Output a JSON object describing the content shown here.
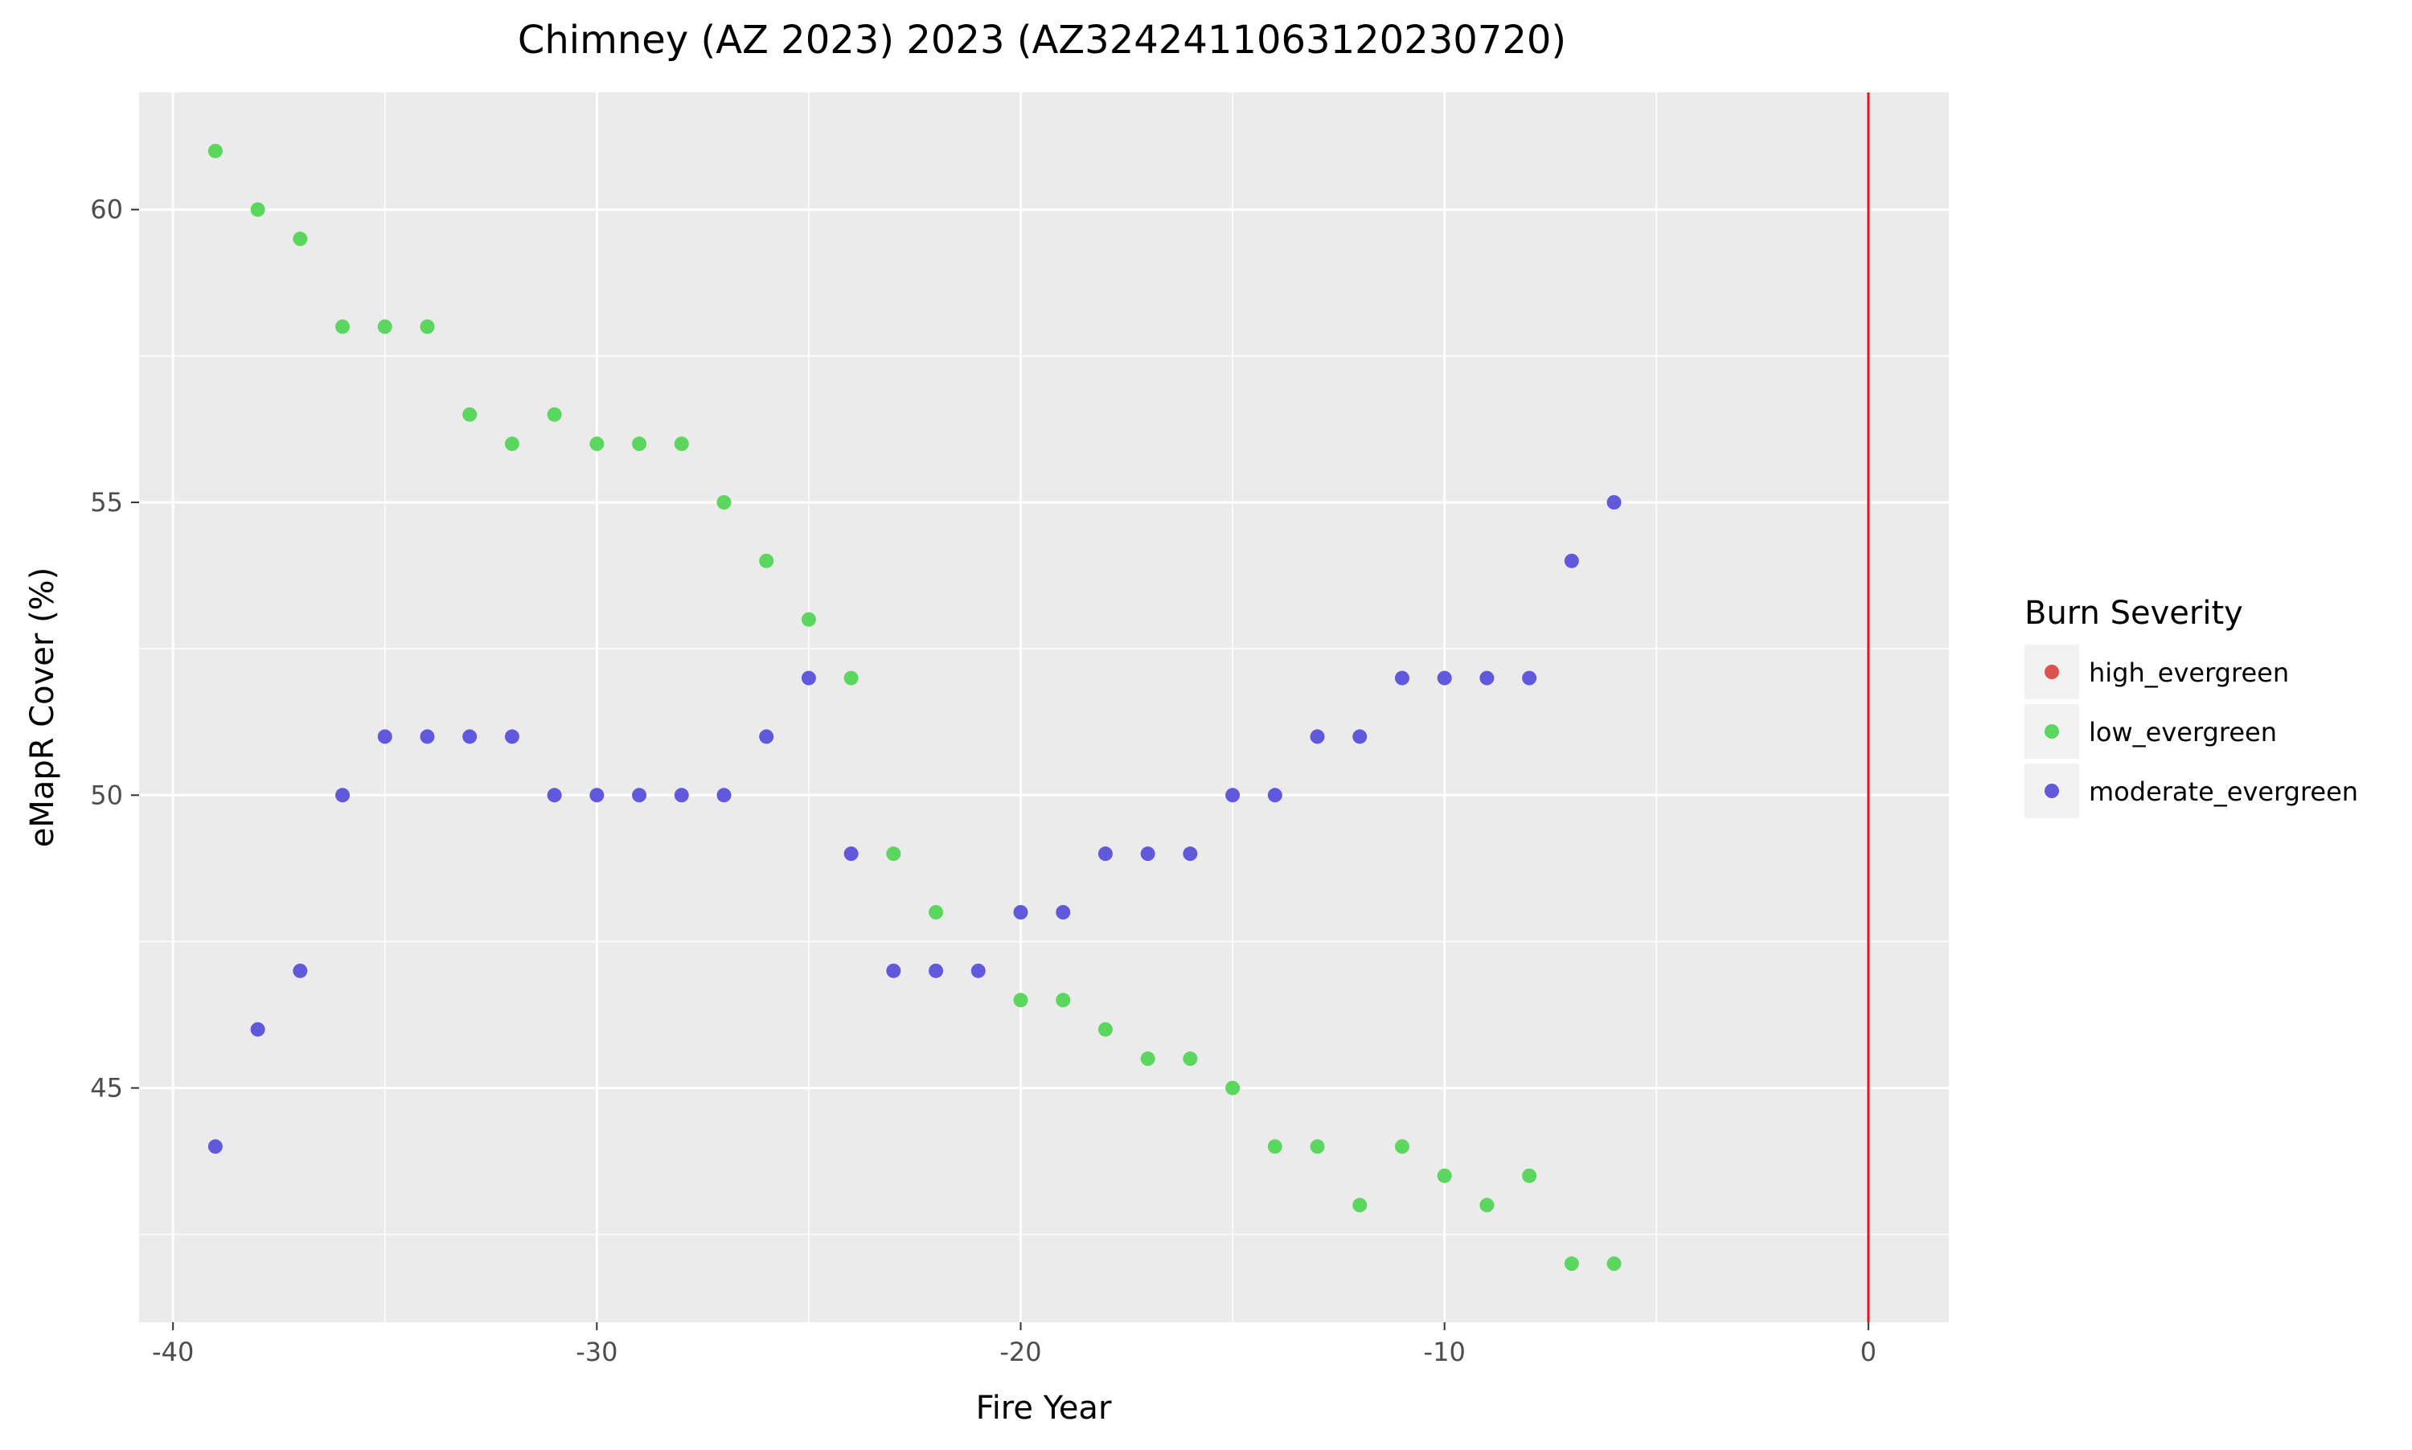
{
  "chart_data": {
    "type": "scatter",
    "title": "Chimney (AZ 2023) 2023 (AZ3242411063120230720)",
    "xlabel": "Fire Year",
    "ylabel": "eMapR Cover (%)",
    "xlim": [
      -40.8,
      1.9
    ],
    "ylim": [
      41.0,
      62.0
    ],
    "x_ticks": [
      -40,
      -30,
      -20,
      -10,
      0
    ],
    "x_tick_labels": [
      "-40",
      "-30",
      "-20",
      "-10",
      "0"
    ],
    "y_ticks": [
      45,
      50,
      55,
      60
    ],
    "y_tick_labels": [
      "45",
      "50",
      "55",
      "60"
    ],
    "grid": true,
    "vline": {
      "x": 0,
      "color": "#e41a1c"
    },
    "legend": {
      "title": "Burn Severity",
      "position": "right",
      "entries": [
        {
          "label": "high_evergreen",
          "color": "#d9544e"
        },
        {
          "label": "low_evergreen",
          "color": "#5bd65e"
        },
        {
          "label": "moderate_evergreen",
          "color": "#6159dc"
        }
      ]
    },
    "series": [
      {
        "name": "high_evergreen",
        "color": "#d9544e",
        "points": []
      },
      {
        "name": "low_evergreen",
        "color": "#5bd65e",
        "points": [
          [
            -39,
            61
          ],
          [
            -38,
            60
          ],
          [
            -37,
            59.5
          ],
          [
            -36,
            58
          ],
          [
            -35,
            58
          ],
          [
            -34,
            58
          ],
          [
            -33,
            56.5
          ],
          [
            -32,
            56
          ],
          [
            -31,
            56.5
          ],
          [
            -30,
            56
          ],
          [
            -29,
            56
          ],
          [
            -28,
            56
          ],
          [
            -27,
            55
          ],
          [
            -26,
            54
          ],
          [
            -25,
            53
          ],
          [
            -24,
            52
          ],
          [
            -23,
            49
          ],
          [
            -22,
            48
          ],
          [
            -20,
            46.5
          ],
          [
            -19,
            46.5
          ],
          [
            -18,
            46
          ],
          [
            -17,
            45.5
          ],
          [
            -16,
            45.5
          ],
          [
            -15,
            45
          ],
          [
            -14,
            44
          ],
          [
            -13,
            44
          ],
          [
            -12,
            43
          ],
          [
            -11,
            44
          ],
          [
            -10,
            43.5
          ],
          [
            -9,
            43
          ],
          [
            -8,
            43.5
          ],
          [
            -7,
            42
          ],
          [
            -6,
            42
          ]
        ]
      },
      {
        "name": "moderate_evergreen",
        "color": "#6159dc",
        "points": [
          [
            -39,
            44
          ],
          [
            -38,
            46
          ],
          [
            -37,
            47
          ],
          [
            -36,
            50
          ],
          [
            -35,
            51
          ],
          [
            -34,
            51
          ],
          [
            -33,
            51
          ],
          [
            -32,
            51
          ],
          [
            -31,
            50
          ],
          [
            -30,
            50
          ],
          [
            -29,
            50
          ],
          [
            -28,
            50
          ],
          [
            -27,
            50
          ],
          [
            -26,
            51
          ],
          [
            -25,
            52
          ],
          [
            -24,
            49
          ],
          [
            -23,
            47
          ],
          [
            -22,
            47
          ],
          [
            -21,
            47
          ],
          [
            -20,
            48
          ],
          [
            -19,
            48
          ],
          [
            -18,
            49
          ],
          [
            -17,
            49
          ],
          [
            -16,
            49
          ],
          [
            -15,
            50
          ],
          [
            -14,
            50
          ],
          [
            -13,
            51
          ],
          [
            -12,
            51
          ],
          [
            -11,
            52
          ],
          [
            -10,
            52
          ],
          [
            -9,
            52
          ],
          [
            -8,
            52
          ],
          [
            -7,
            54
          ],
          [
            -6,
            55
          ]
        ]
      }
    ]
  }
}
